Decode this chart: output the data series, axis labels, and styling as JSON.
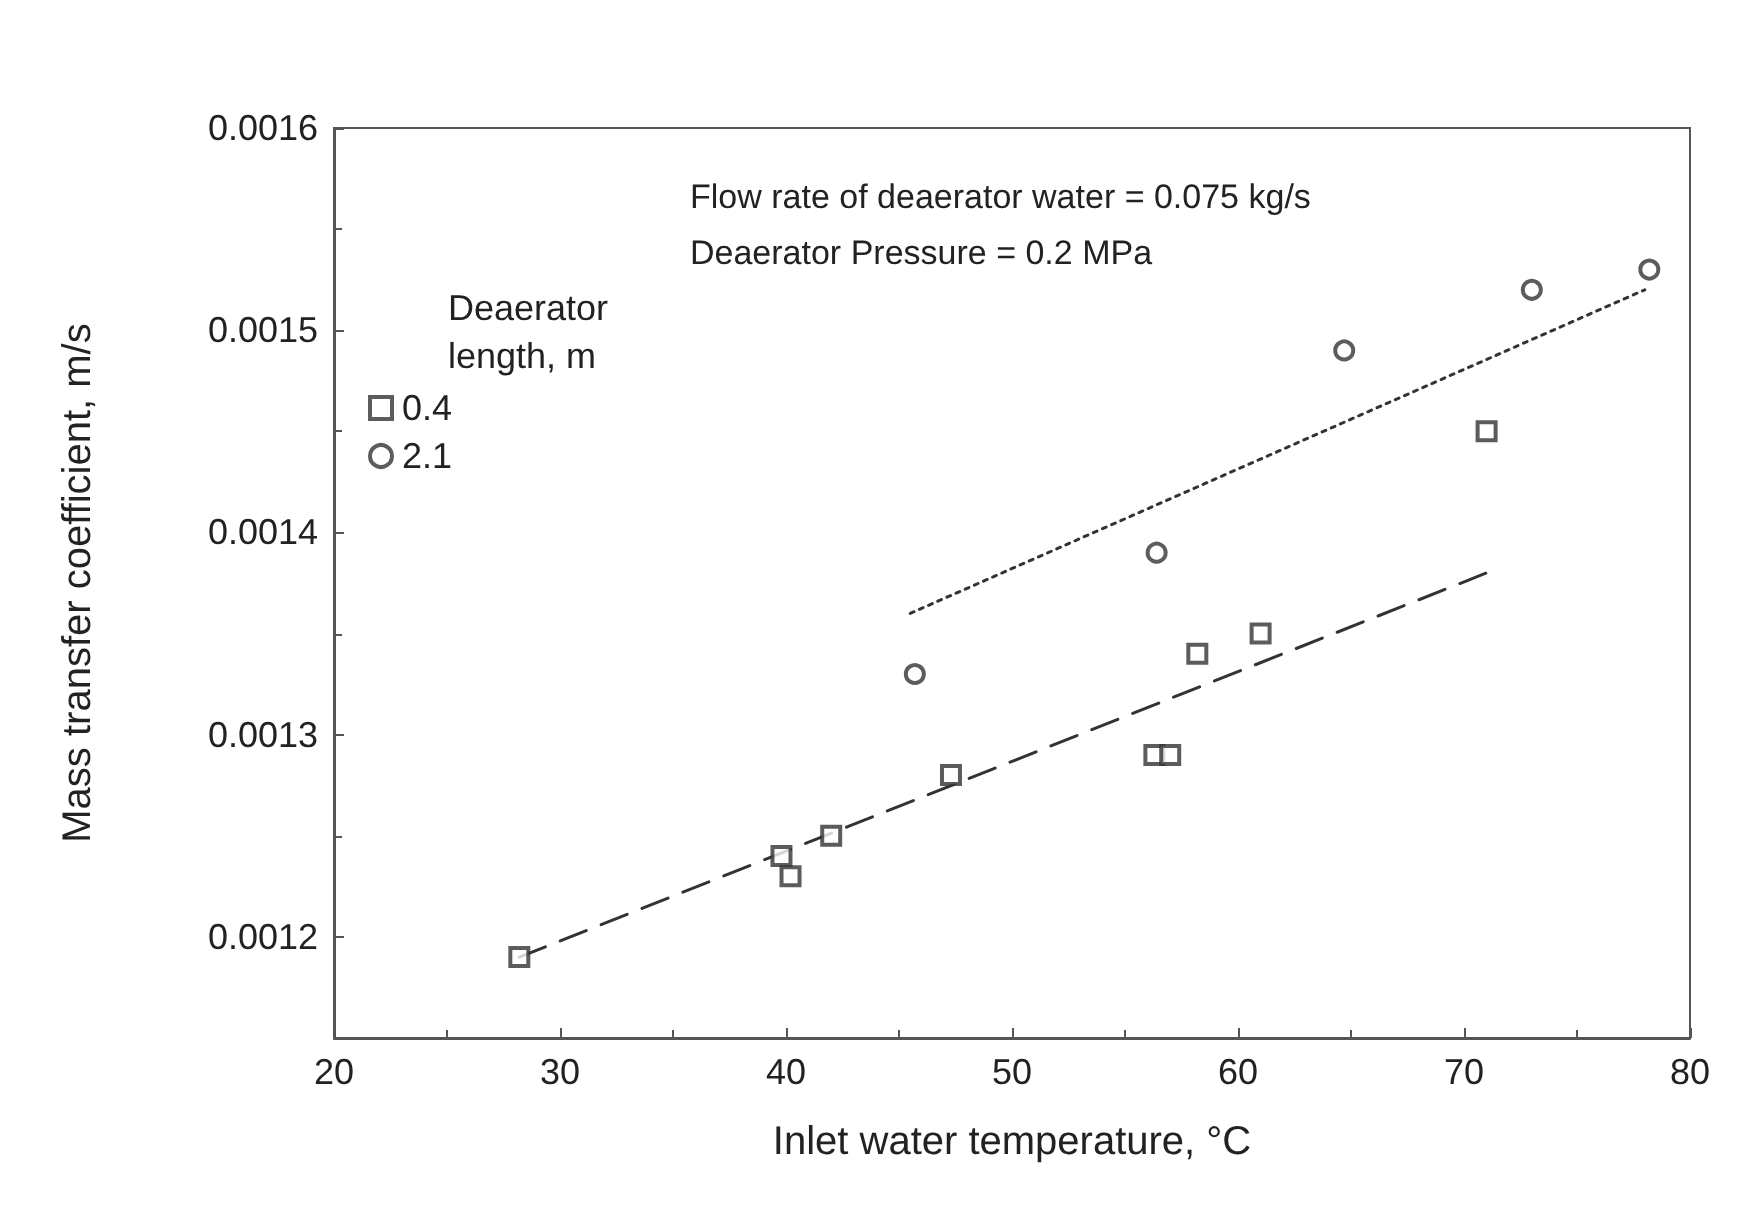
{
  "chart_data": {
    "type": "scatter",
    "xlabel": "Inlet water temperature, °C",
    "ylabel": "Mass transfer coefficient, m/s",
    "legend_title": "Deaerator length, m",
    "annotations": [
      "Flow rate of deaerator water = 0.075 kg/s",
      "Deaerator Pressure = 0.2 MPa"
    ],
    "xlim": [
      20,
      80
    ],
    "xticks": [
      20,
      30,
      40,
      50,
      60,
      70,
      80
    ],
    "ylim": [
      0.00115,
      0.0016
    ],
    "yticks": [
      0.0012,
      0.0013,
      0.0014,
      0.0015,
      0.0016
    ],
    "grid": false,
    "legend": "top left",
    "series": [
      {
        "name": "0.4",
        "marker": "square",
        "color": "#333333",
        "x": [
          28.2,
          39.8,
          40.2,
          42,
          47.3,
          56.3,
          57,
          58.2,
          61,
          71
        ],
        "values": [
          0.00119,
          0.00124,
          0.00123,
          0.00125,
          0.00128,
          0.00129,
          0.00129,
          0.00134,
          0.00135,
          0.00145
        ]
      },
      {
        "name": "2.1",
        "marker": "circle",
        "color": "#333333",
        "x": [
          45.7,
          56.4,
          64.7,
          73,
          78.2
        ],
        "values": [
          0.00133,
          0.00139,
          0.00149,
          0.00152,
          0.00153
        ]
      },
      {
        "type": "line",
        "marker": "none",
        "line_style": "dashed",
        "color": "#333333",
        "x": [
          28.2,
          71
        ],
        "values": [
          0.00119,
          0.00138
        ]
      },
      {
        "type": "line",
        "marker": "none",
        "line_style": "dotted",
        "color": "#333333",
        "x": [
          45.5,
          78
        ],
        "values": [
          0.00136,
          0.00152
        ]
      }
    ]
  }
}
